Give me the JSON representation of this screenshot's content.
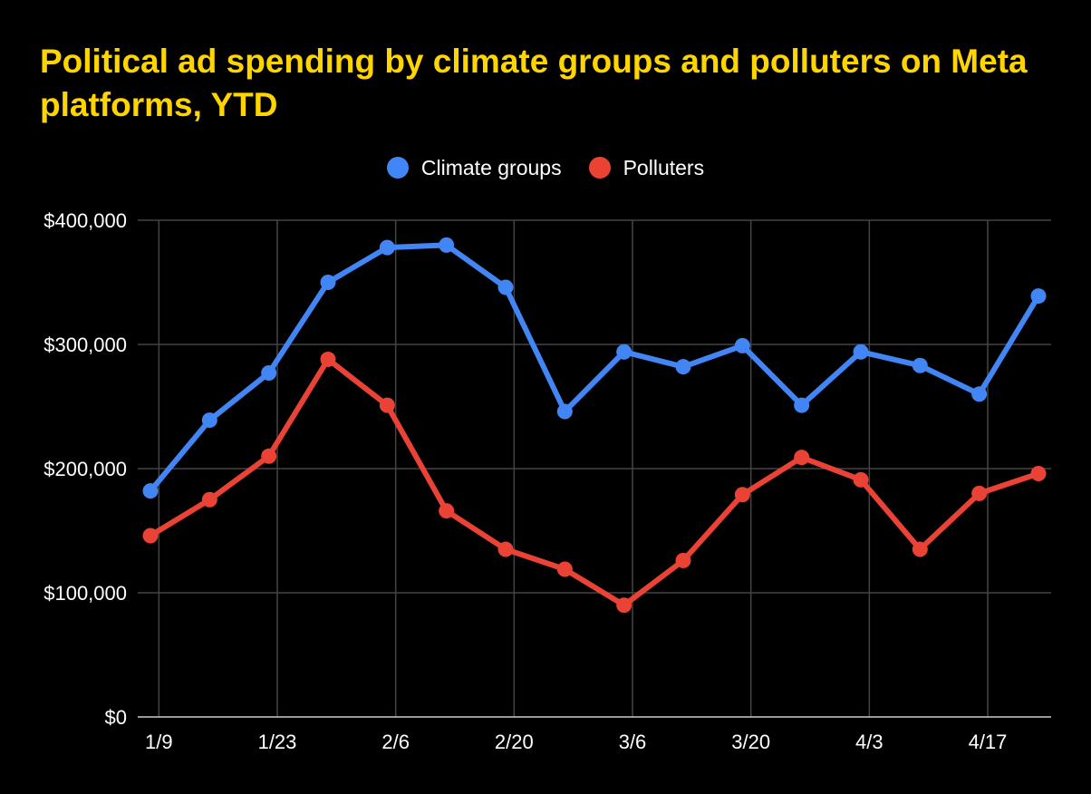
{
  "chart_data": {
    "type": "line",
    "title": "Political ad spending by climate groups and polluters on Meta platforms, YTD",
    "xlabel": "",
    "ylabel": "",
    "x_tick_labels": [
      "1/9",
      "1/23",
      "2/6",
      "2/20",
      "3/6",
      "3/20",
      "4/3",
      "4/17"
    ],
    "y_tick_labels": [
      "$0",
      "$100,000",
      "$200,000",
      "$300,000",
      "$400,000"
    ],
    "ylim": [
      0,
      400000
    ],
    "grid": true,
    "legend_position": "top-center",
    "x": [
      "1/8",
      "1/15",
      "1/22",
      "1/29",
      "2/5",
      "2/12",
      "2/19",
      "2/26",
      "3/5",
      "3/12",
      "3/19",
      "3/26",
      "4/2",
      "4/9",
      "4/16",
      "4/23"
    ],
    "series": [
      {
        "name": "Climate groups",
        "color": "#4285f4",
        "values": [
          182000,
          239000,
          277000,
          350000,
          378000,
          380000,
          346000,
          246000,
          294000,
          282000,
          299000,
          251000,
          294000,
          283000,
          260000,
          339000
        ]
      },
      {
        "name": "Polluters",
        "color": "#ea4335",
        "values": [
          146000,
          175000,
          210000,
          288000,
          251000,
          166000,
          135000,
          119000,
          90000,
          126000,
          179000,
          209000,
          191000,
          135000,
          180000,
          196000
        ]
      }
    ]
  }
}
